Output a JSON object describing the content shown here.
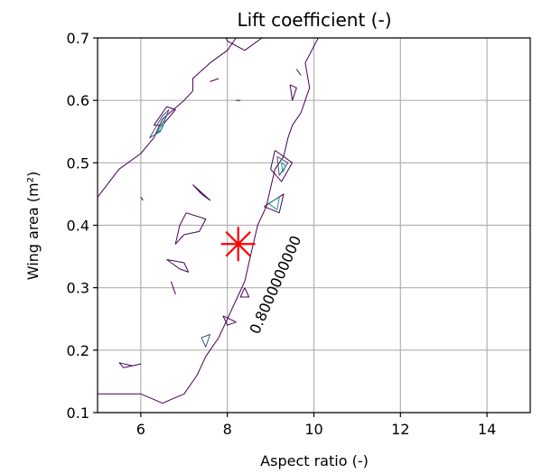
{
  "chart_data": {
    "type": "contour",
    "title": "Lift coefficient (-)",
    "xlabel": "Aspect ratio (-)",
    "ylabel": "Wing area (m²)",
    "xlim": [
      5,
      15
    ],
    "ylim": [
      0.1,
      0.7
    ],
    "x_ticks": [
      "6",
      "8",
      "10",
      "12",
      "14"
    ],
    "x_tick_values": [
      6,
      8,
      10,
      12,
      14
    ],
    "y_ticks": [
      "0.1",
      "0.2",
      "0.3",
      "0.4",
      "0.5",
      "0.6",
      "0.7"
    ],
    "y_tick_values": [
      0.1,
      0.2,
      0.3,
      0.4,
      0.5,
      0.6,
      0.7
    ],
    "grid": true,
    "contour_label": "0.8000000000",
    "contour_label_at": {
      "x": 9.1,
      "y": 0.305
    },
    "marker": {
      "x": 8.25,
      "y": 0.37,
      "symbol": "asterisk",
      "color": "#ff0000"
    },
    "contour_colors": [
      "#440154",
      "#3b528b",
      "#21918c",
      "#5ec962",
      "#fde725"
    ],
    "contours": [
      {
        "level": "boundary",
        "color": "#440154",
        "points": [
          [
            5.0,
            0.13
          ],
          [
            5.0,
            0.445
          ],
          [
            5.5,
            0.49
          ],
          [
            6.0,
            0.515
          ],
          [
            6.3,
            0.54
          ],
          [
            6.5,
            0.57
          ],
          [
            7.0,
            0.6
          ],
          [
            7.2,
            0.615
          ],
          [
            7.2,
            0.635
          ],
          [
            7.6,
            0.66
          ],
          [
            8.0,
            0.68
          ],
          [
            8.2,
            0.7
          ]
        ]
      },
      {
        "level": "boundary",
        "color": "#440154",
        "points": [
          [
            10.1,
            0.7
          ],
          [
            9.8,
            0.66
          ],
          [
            9.9,
            0.62
          ],
          [
            9.8,
            0.6
          ],
          [
            9.7,
            0.58
          ],
          [
            9.5,
            0.56
          ],
          [
            9.4,
            0.54
          ],
          [
            9.3,
            0.51
          ],
          [
            9.1,
            0.49
          ],
          [
            9.0,
            0.46
          ],
          [
            8.9,
            0.43
          ],
          [
            8.7,
            0.4
          ],
          [
            8.6,
            0.37
          ],
          [
            8.5,
            0.34
          ],
          [
            8.4,
            0.31
          ],
          [
            8.2,
            0.28
          ],
          [
            8.0,
            0.25
          ],
          [
            7.8,
            0.22
          ],
          [
            7.5,
            0.19
          ],
          [
            7.3,
            0.16
          ],
          [
            7.0,
            0.13
          ],
          [
            6.5,
            0.115
          ],
          [
            6.0,
            0.13
          ],
          [
            5.0,
            0.13
          ]
        ]
      },
      {
        "level": "",
        "color": "#440154",
        "points": [
          [
            7.05,
            0.42
          ],
          [
            7.5,
            0.41
          ],
          [
            7.35,
            0.39
          ],
          [
            7.0,
            0.385
          ],
          [
            6.8,
            0.37
          ],
          [
            6.9,
            0.4
          ],
          [
            7.05,
            0.42
          ]
        ]
      },
      {
        "level": "",
        "color": "#440154",
        "points": [
          [
            7.8,
            0.73
          ],
          [
            8.0,
            0.695
          ],
          [
            8.4,
            0.68
          ],
          [
            8.8,
            0.7
          ],
          [
            8.5,
            0.73
          ],
          [
            7.8,
            0.73
          ]
        ]
      },
      {
        "level": "",
        "color": "#440154",
        "points": [
          [
            6.6,
            0.345
          ],
          [
            7.0,
            0.34
          ],
          [
            7.1,
            0.325
          ],
          [
            6.9,
            0.33
          ],
          [
            6.6,
            0.345
          ]
        ]
      },
      {
        "level": "",
        "color": "#440154",
        "points": [
          [
            6.7,
            0.31
          ],
          [
            6.8,
            0.29
          ],
          [
            6.75,
            0.3
          ],
          [
            6.7,
            0.31
          ]
        ]
      },
      {
        "level": "",
        "color": "#440154",
        "points": [
          [
            7.2,
            0.465
          ],
          [
            7.6,
            0.44
          ],
          [
            7.4,
            0.45
          ],
          [
            7.2,
            0.465
          ]
        ]
      },
      {
        "level": "",
        "color": "#440154",
        "points": [
          [
            5.5,
            0.18
          ],
          [
            5.8,
            0.175
          ],
          [
            6.0,
            0.178
          ],
          [
            5.6,
            0.172
          ],
          [
            5.5,
            0.18
          ]
        ]
      },
      {
        "level": "",
        "color": "#440154",
        "points": [
          [
            7.6,
            0.63
          ],
          [
            7.8,
            0.635
          ]
        ]
      },
      {
        "level": "",
        "color": "#440154",
        "points": [
          [
            8.2,
            0.6
          ],
          [
            8.3,
            0.6
          ]
        ]
      },
      {
        "level": "",
        "color": "#440154",
        "points": [
          [
            6.3,
            0.56
          ],
          [
            6.6,
            0.59
          ],
          [
            6.8,
            0.585
          ],
          [
            6.5,
            0.56
          ],
          [
            6.3,
            0.56
          ]
        ]
      },
      {
        "level": "",
        "color": "#3b528b",
        "points": [
          [
            6.2,
            0.54
          ],
          [
            6.5,
            0.575
          ],
          [
            6.65,
            0.585
          ],
          [
            6.45,
            0.55
          ],
          [
            6.2,
            0.54
          ]
        ]
      },
      {
        "level": "",
        "color": "#21918c",
        "points": [
          [
            6.35,
            0.545
          ],
          [
            6.55,
            0.57
          ],
          [
            6.5,
            0.556
          ],
          [
            6.35,
            0.545
          ]
        ]
      },
      {
        "level": "",
        "color": "#5ec962",
        "points": [
          [
            6.45,
            0.563
          ],
          [
            6.55,
            0.567
          ]
        ]
      },
      {
        "level": "",
        "color": "#440154",
        "points": [
          [
            9.1,
            0.52
          ],
          [
            9.5,
            0.5
          ],
          [
            9.25,
            0.47
          ],
          [
            9.0,
            0.49
          ],
          [
            9.1,
            0.52
          ]
        ]
      },
      {
        "level": "",
        "color": "#3b528b",
        "points": [
          [
            9.15,
            0.51
          ],
          [
            9.4,
            0.5
          ],
          [
            9.2,
            0.48
          ],
          [
            9.15,
            0.51
          ]
        ]
      },
      {
        "level": "",
        "color": "#21918c",
        "points": [
          [
            9.25,
            0.5
          ],
          [
            9.35,
            0.495
          ],
          [
            9.28,
            0.485
          ],
          [
            9.25,
            0.5
          ]
        ]
      },
      {
        "level": "",
        "color": "#440154",
        "points": [
          [
            8.85,
            0.43
          ],
          [
            9.3,
            0.45
          ],
          [
            9.2,
            0.42
          ],
          [
            8.85,
            0.43
          ]
        ]
      },
      {
        "level": "",
        "color": "#21918c",
        "points": [
          [
            8.95,
            0.435
          ],
          [
            9.2,
            0.445
          ],
          [
            9.15,
            0.425
          ],
          [
            8.95,
            0.435
          ]
        ]
      },
      {
        "level": "",
        "color": "#440154",
        "points": [
          [
            9.6,
            0.65
          ],
          [
            9.7,
            0.64
          ]
        ]
      },
      {
        "level": "",
        "color": "#440154",
        "points": [
          [
            9.45,
            0.625
          ],
          [
            9.6,
            0.62
          ],
          [
            9.5,
            0.6
          ],
          [
            9.45,
            0.625
          ]
        ]
      },
      {
        "level": "",
        "color": "#440154",
        "points": [
          [
            8.4,
            0.3
          ],
          [
            8.5,
            0.285
          ],
          [
            8.3,
            0.285
          ],
          [
            8.4,
            0.3
          ]
        ]
      },
      {
        "level": "",
        "color": "#440154",
        "points": [
          [
            7.9,
            0.255
          ],
          [
            8.2,
            0.245
          ],
          [
            8.0,
            0.24
          ],
          [
            7.9,
            0.255
          ]
        ]
      },
      {
        "level": "",
        "color": "#3b528b",
        "points": [
          [
            7.4,
            0.22
          ],
          [
            7.6,
            0.225
          ],
          [
            7.5,
            0.205
          ],
          [
            7.4,
            0.22
          ]
        ]
      },
      {
        "level": "",
        "color": "#440154",
        "points": [
          [
            6.0,
            0.445
          ],
          [
            6.05,
            0.44
          ]
        ]
      }
    ]
  }
}
